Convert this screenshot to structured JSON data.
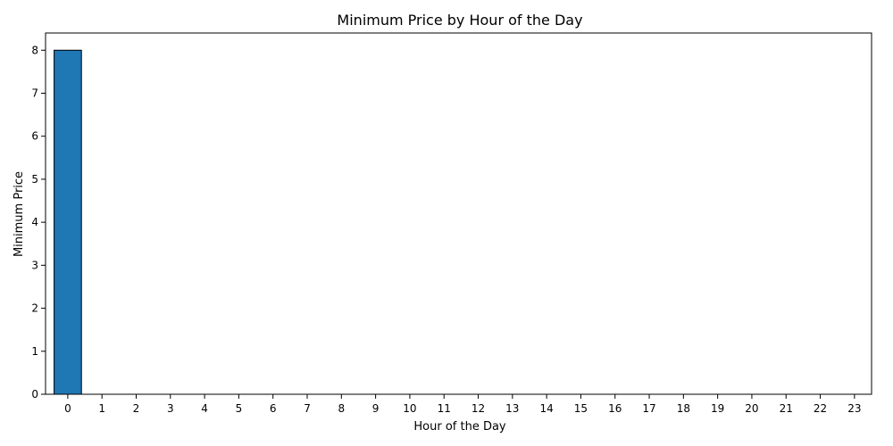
{
  "chart_data": {
    "type": "bar",
    "title": "Minimum Price by Hour of the Day",
    "xlabel": "Hour of the Day",
    "ylabel": "Minimum Price",
    "categories": [
      "0",
      "1",
      "2",
      "3",
      "4",
      "5",
      "6",
      "7",
      "8",
      "9",
      "10",
      "11",
      "12",
      "13",
      "14",
      "15",
      "16",
      "17",
      "18",
      "19",
      "20",
      "21",
      "22",
      "23"
    ],
    "values": [
      8,
      0,
      0,
      0,
      0,
      0,
      0,
      0,
      0,
      0,
      0,
      0,
      0,
      0,
      0,
      0,
      0,
      0,
      0,
      0,
      0,
      0,
      0,
      0
    ],
    "ylim": [
      0,
      8.4
    ],
    "yticks": [
      "0",
      "1",
      "2",
      "3",
      "4",
      "5",
      "6",
      "7",
      "8"
    ],
    "grid": false,
    "bar_color": "#1f77b4",
    "bar_edge_color": "#000000"
  }
}
